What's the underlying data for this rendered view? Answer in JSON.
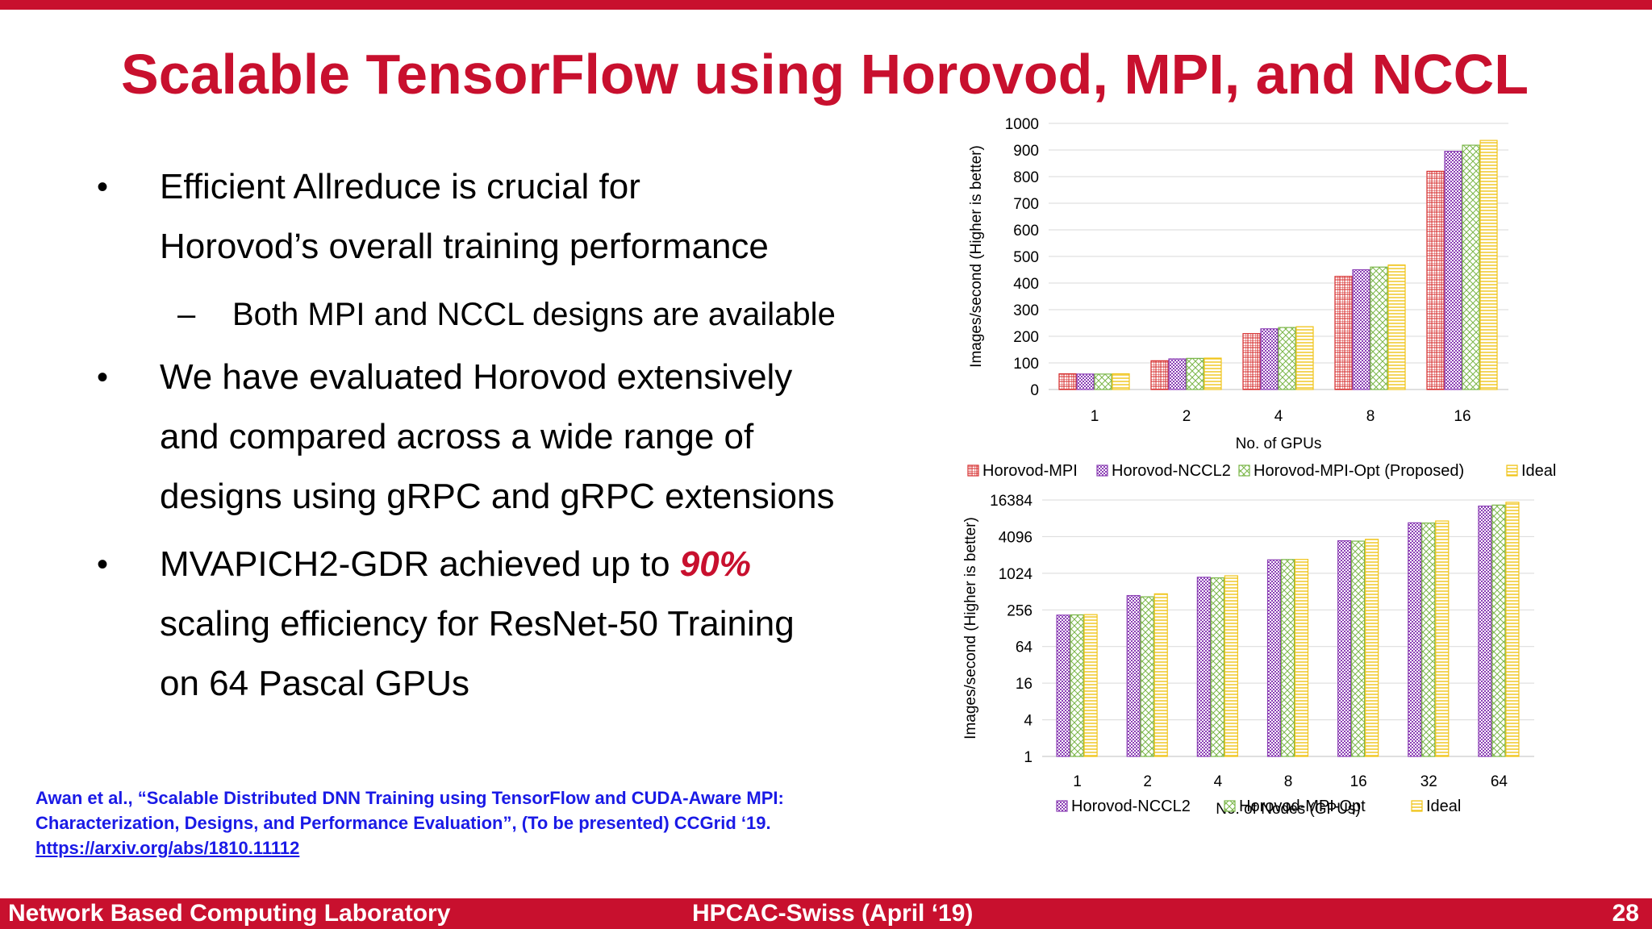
{
  "slide": {
    "title": "Scalable TensorFlow using Horovod, MPI, and NCCL",
    "bullets": [
      {
        "lines": [
          "Efficient Allreduce is crucial for",
          "Horovod’s overall training performance"
        ]
      },
      {
        "sub": "Both MPI and NCCL designs are available"
      },
      {
        "lines": [
          "We have evaluated Horovod extensively",
          "and compared across a wide range of",
          "designs using gRPC and gRPC extensions"
        ]
      },
      {
        "line_prefix": "MVAPICH2-GDR achieved up to ",
        "accent": "90%",
        "lines": [
          "scaling efficiency for ResNet-50 Training",
          "on 64 Pascal GPUs"
        ]
      }
    ],
    "reference": {
      "line1": "Awan et al., “Scalable Distributed DNN Training using TensorFlow and CUDA-Aware MPI:",
      "line2": "Characterization, Designs, and Performance Evaluation”, (To be presented) CCGrid ‘19.",
      "link": "https://arxiv.org/abs/1810.11112"
    },
    "footer": {
      "left": "Network Based Computing Laboratory",
      "center": "HPCAC-Swiss (April ‘19)",
      "right": "28"
    },
    "colors": {
      "accent": "#c8102e",
      "link": "#1a1ae6"
    }
  },
  "chart_data": [
    {
      "type": "bar",
      "ylabel": "Images/second (Higher is better)",
      "xlabel": "No. of GPUs",
      "categories": [
        "1",
        "2",
        "4",
        "8",
        "16"
      ],
      "ylim": [
        0,
        1000
      ],
      "yticks": [
        0,
        100,
        200,
        300,
        400,
        500,
        600,
        700,
        800,
        900,
        1000
      ],
      "grid": true,
      "legend": "bottom",
      "series": [
        {
          "name": "Horovod-MPI",
          "color": "#d62d2d",
          "pattern": "grid",
          "values": [
            59,
            108,
            210,
            425,
            820
          ]
        },
        {
          "name": "Horovod-NCCL2",
          "color": "#8b3fb5",
          "pattern": "dense",
          "values": [
            58,
            115,
            228,
            450,
            895
          ]
        },
        {
          "name": "Horovod-MPI-Opt (Proposed)",
          "color": "#7ab648",
          "pattern": "cross",
          "values": [
            58,
            117,
            233,
            460,
            918
          ]
        },
        {
          "name": "Ideal",
          "color": "#f0c419",
          "pattern": "hlines",
          "values": [
            59,
            118,
            236,
            468,
            936
          ]
        }
      ]
    },
    {
      "type": "bar",
      "scale": "log2",
      "ylabel": "Images/second (Higher is better)",
      "xlabel": "No. of Nodes (GPUs)",
      "categories": [
        "1",
        "2",
        "4",
        "8",
        "16",
        "32",
        "64"
      ],
      "ylim": [
        1,
        16384
      ],
      "yticks": [
        1,
        4,
        16,
        64,
        256,
        1024,
        4096,
        16384
      ],
      "grid": true,
      "legend": "bottom",
      "series": [
        {
          "name": "Horovod-NCCL2",
          "color": "#8b3fb5",
          "pattern": "dense",
          "values": [
            210,
            440,
            880,
            1700,
            3500,
            6900,
            13000
          ]
        },
        {
          "name": "Horovod-MPI-Opt",
          "color": "#7ab648",
          "pattern": "cross",
          "values": [
            212,
            420,
            860,
            1720,
            3450,
            6850,
            13500
          ]
        },
        {
          "name": "Ideal",
          "color": "#f0c419",
          "pattern": "hlines",
          "values": [
            214,
            470,
            930,
            1730,
            3700,
            7400,
            15000
          ]
        }
      ]
    }
  ]
}
